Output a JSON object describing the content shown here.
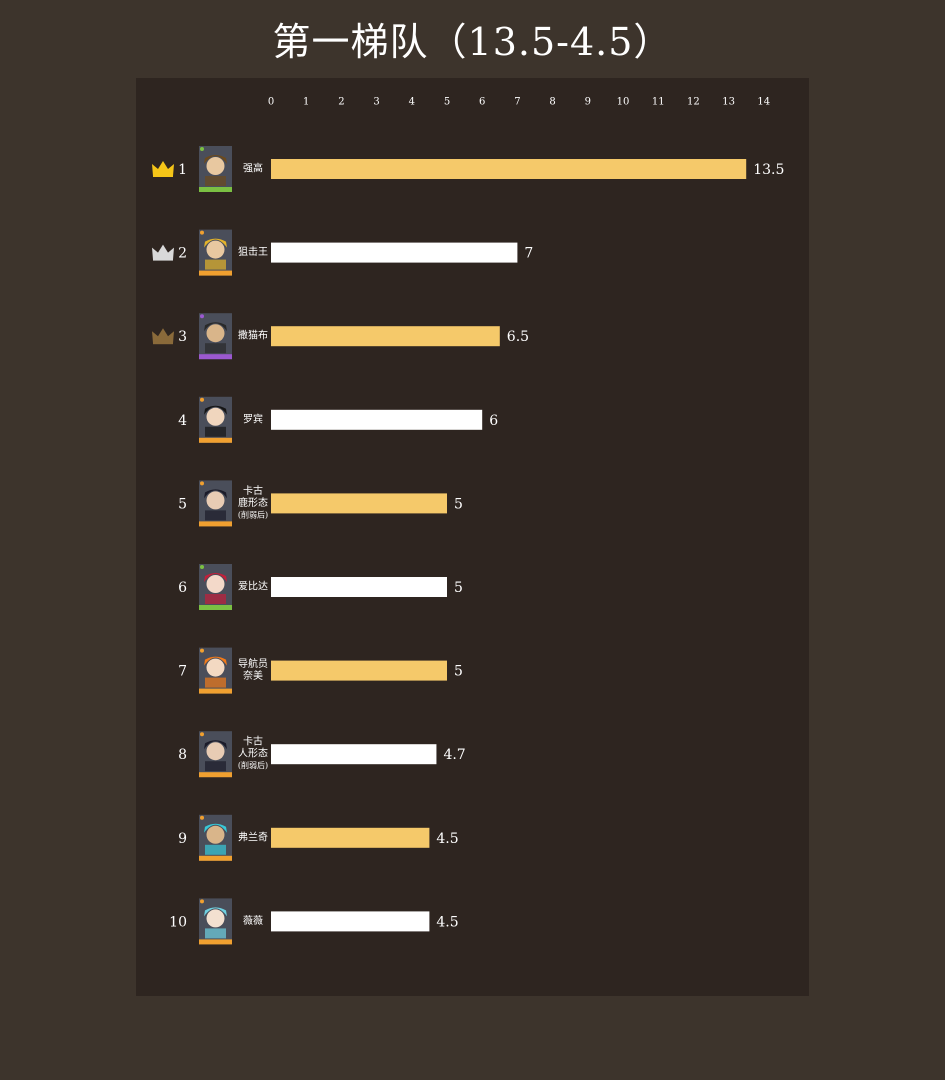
{
  "title": "第一梯队（13.5-4.5）",
  "colors": {
    "background": "#3d342c",
    "panel": "#2e2520",
    "highlight_bar": "#f5c96a",
    "plain_bar": "#ffffff",
    "gold_crown": "#f5c518",
    "silver_crown": "#d9d9d9",
    "bronze_crown": "#8a6a3a"
  },
  "chart_data": {
    "type": "bar",
    "orientation": "horizontal",
    "xlim": [
      0,
      14
    ],
    "ticks": [
      "0",
      "1",
      "2",
      "3",
      "4",
      "5",
      "6",
      "7",
      "8",
      "9",
      "10",
      "11",
      "12",
      "13",
      "14"
    ],
    "grid": false,
    "items": [
      {
        "rank": "1",
        "crown": "gold",
        "name_lines": [
          "强高"
        ],
        "value": 13.5,
        "value_label": "13.5",
        "color": "#f5c96a"
      },
      {
        "rank": "2",
        "crown": "silver",
        "name_lines": [
          "狙击王"
        ],
        "value": 7,
        "value_label": "7",
        "color": "#ffffff"
      },
      {
        "rank": "3",
        "crown": "bronze",
        "name_lines": [
          "撒猫布"
        ],
        "value": 6.5,
        "value_label": "6.5",
        "color": "#f5c96a"
      },
      {
        "rank": "4",
        "crown": "",
        "name_lines": [
          "罗宾"
        ],
        "value": 6,
        "value_label": "6",
        "color": "#ffffff"
      },
      {
        "rank": "5",
        "crown": "",
        "name_lines": [
          "卡古",
          "鹿形态",
          "(削弱后)"
        ],
        "value": 5,
        "value_label": "5",
        "color": "#f5c96a"
      },
      {
        "rank": "6",
        "crown": "",
        "name_lines": [
          "爱比达"
        ],
        "value": 5,
        "value_label": "5",
        "color": "#ffffff"
      },
      {
        "rank": "7",
        "crown": "",
        "name_lines": [
          "导航员",
          "奈美"
        ],
        "value": 5,
        "value_label": "5",
        "color": "#f5c96a"
      },
      {
        "rank": "8",
        "crown": "",
        "name_lines": [
          "卡古",
          "人形态",
          "(削弱后)"
        ],
        "value": 4.7,
        "value_label": "4.7",
        "color": "#ffffff"
      },
      {
        "rank": "9",
        "crown": "",
        "name_lines": [
          "弗兰奇"
        ],
        "value": 4.5,
        "value_label": "4.5",
        "color": "#f5c96a"
      },
      {
        "rank": "10",
        "crown": "",
        "name_lines": [
          "薇薇"
        ],
        "value": 4.5,
        "value_label": "4.5",
        "color": "#ffffff"
      }
    ]
  },
  "avatars": [
    {
      "icon": "character-portrait-icon",
      "skin": "#e8c8a0",
      "hair": "#6b4a1e",
      "frame": "#7bc043"
    },
    {
      "icon": "character-portrait-icon",
      "skin": "#e8c8a0",
      "hair": "#e3b32a",
      "frame": "#f0a030"
    },
    {
      "icon": "character-portrait-icon",
      "skin": "#d9b58a",
      "hair": "#2a2a2a",
      "frame": "#9b59d0"
    },
    {
      "icon": "character-portrait-icon",
      "skin": "#f0d6be",
      "hair": "#151515",
      "frame": "#f0a030"
    },
    {
      "icon": "character-portrait-icon",
      "skin": "#e8ccb4",
      "hair": "#1c1c2a",
      "frame": "#f0a030"
    },
    {
      "icon": "character-portrait-icon",
      "skin": "#f3d9c9",
      "hair": "#c0203a",
      "frame": "#7bc043"
    },
    {
      "icon": "character-portrait-icon",
      "skin": "#f3d9c2",
      "hair": "#f07a1a",
      "frame": "#f0a030"
    },
    {
      "icon": "character-portrait-icon",
      "skin": "#e8ccb4",
      "hair": "#1c1c2a",
      "frame": "#f0a030"
    },
    {
      "icon": "character-portrait-icon",
      "skin": "#d9b58a",
      "hair": "#38c9d8",
      "frame": "#f0a030"
    },
    {
      "icon": "character-portrait-icon",
      "skin": "#f3e0d0",
      "hair": "#6fd0e0",
      "frame": "#f0a030"
    }
  ]
}
